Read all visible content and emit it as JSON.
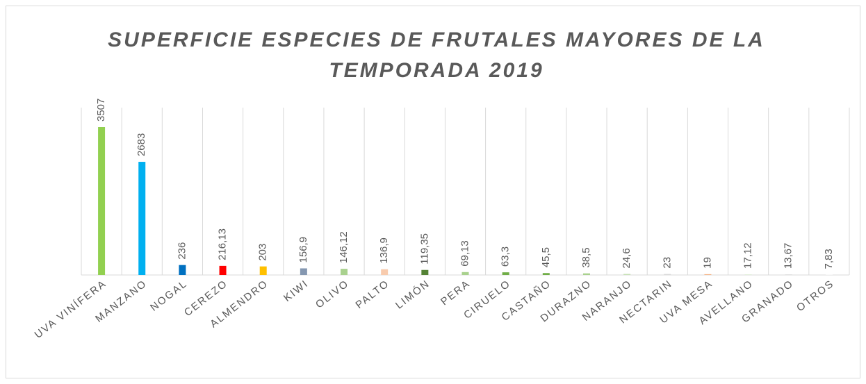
{
  "chart_data": {
    "type": "bar",
    "title": "SUPERFICIE ESPECIES DE FRUTALES MAYORES DE LA TEMPORADA 2019",
    "categories": [
      "UVA VINÍFERA",
      "MANZANO",
      "NOGAL",
      "CEREZO",
      "ALMENDRO",
      "KIWI",
      "OLIVO",
      "PALTO",
      "LIMÓN",
      "PERA",
      "CIRUELO",
      "CASTAÑO",
      "DURAZNO",
      "NARANJO",
      "NECTARIN",
      "UVA MESA",
      "AVELLANO",
      "GRANADO",
      "OTROS"
    ],
    "values": [
      3507,
      2683,
      236,
      216.13,
      203,
      156.9,
      146.12,
      136.9,
      119.35,
      69.13,
      63.3,
      45.5,
      38.5,
      24.6,
      23,
      19,
      17.12,
      13.67,
      7.83
    ],
    "value_labels": [
      "3507",
      "2683",
      "236",
      "216,13",
      "203",
      "156,9",
      "146,12",
      "136,9",
      "119,35",
      "69,13",
      "63,3",
      "45,5",
      "38,5",
      "24,6",
      "23",
      "19",
      "17,12",
      "13,67",
      "7,83"
    ],
    "colors": [
      "#92d050",
      "#00b0f0",
      "#0070c0",
      "#ff0000",
      "#ffc000",
      "#8497b0",
      "#a9d18e",
      "#f8cbad",
      "#548235",
      "#a9d18e",
      "#70ad47",
      "#70ad47",
      "#a9d18e",
      "#c5e0b4",
      "#d9d9d9",
      "#f4b183",
      "#e2efda",
      "#d9d9d9",
      "#f2f2f2"
    ]
  }
}
